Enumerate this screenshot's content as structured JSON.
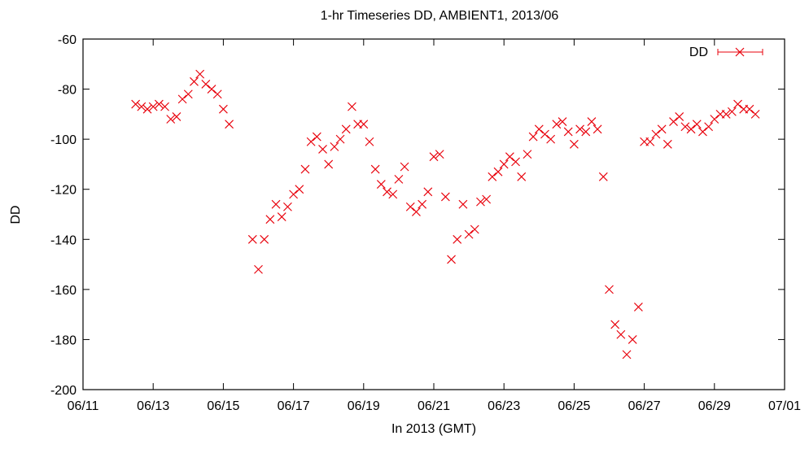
{
  "chart_data": {
    "type": "scatter",
    "title": "1-hr Timeseries DD, AMBIENT1, 2013/06",
    "xlabel": "In 2013 (GMT)",
    "ylabel": "DD",
    "xlim": [
      "2013-06-11",
      "2013-07-01"
    ],
    "ylim": [
      -200,
      -60
    ],
    "x_ticks": [
      "06/11",
      "06/13",
      "06/15",
      "06/17",
      "06/19",
      "06/21",
      "06/23",
      "06/25",
      "06/27",
      "06/29",
      "07/01"
    ],
    "y_ticks": [
      -60,
      -80,
      -100,
      -120,
      -140,
      -160,
      -180,
      -200
    ],
    "grid": false,
    "legend_position": "top-right",
    "marker": "x",
    "colors": {
      "series": "#e8000b",
      "frame": "#000000",
      "text": "#000000"
    },
    "series": [
      {
        "name": "DD",
        "x": [
          "2013-06-12 12:00",
          "2013-06-12 16:00",
          "2013-06-12 20:00",
          "2013-06-13 00:00",
          "2013-06-13 04:00",
          "2013-06-13 08:00",
          "2013-06-13 12:00",
          "2013-06-13 16:00",
          "2013-06-13 20:00",
          "2013-06-14 00:00",
          "2013-06-14 04:00",
          "2013-06-14 08:00",
          "2013-06-14 12:00",
          "2013-06-14 16:00",
          "2013-06-14 20:00",
          "2013-06-15 00:00",
          "2013-06-15 04:00",
          "2013-06-15 20:00",
          "2013-06-16 00:00",
          "2013-06-16 04:00",
          "2013-06-16 08:00",
          "2013-06-16 12:00",
          "2013-06-16 16:00",
          "2013-06-16 20:00",
          "2013-06-17 00:00",
          "2013-06-17 04:00",
          "2013-06-17 08:00",
          "2013-06-17 12:00",
          "2013-06-17 16:00",
          "2013-06-17 20:00",
          "2013-06-18 00:00",
          "2013-06-18 04:00",
          "2013-06-18 08:00",
          "2013-06-18 12:00",
          "2013-06-18 16:00",
          "2013-06-18 20:00",
          "2013-06-19 00:00",
          "2013-06-19 04:00",
          "2013-06-19 08:00",
          "2013-06-19 12:00",
          "2013-06-19 16:00",
          "2013-06-19 20:00",
          "2013-06-20 00:00",
          "2013-06-20 04:00",
          "2013-06-20 08:00",
          "2013-06-20 12:00",
          "2013-06-20 16:00",
          "2013-06-20 20:00",
          "2013-06-21 00:00",
          "2013-06-21 04:00",
          "2013-06-21 08:00",
          "2013-06-21 12:00",
          "2013-06-21 16:00",
          "2013-06-21 20:00",
          "2013-06-22 00:00",
          "2013-06-22 04:00",
          "2013-06-22 08:00",
          "2013-06-22 12:00",
          "2013-06-22 16:00",
          "2013-06-22 20:00",
          "2013-06-23 00:00",
          "2013-06-23 04:00",
          "2013-06-23 08:00",
          "2013-06-23 12:00",
          "2013-06-23 16:00",
          "2013-06-23 20:00",
          "2013-06-24 00:00",
          "2013-06-24 04:00",
          "2013-06-24 08:00",
          "2013-06-24 12:00",
          "2013-06-24 16:00",
          "2013-06-24 20:00",
          "2013-06-25 00:00",
          "2013-06-25 04:00",
          "2013-06-25 08:00",
          "2013-06-25 12:00",
          "2013-06-25 16:00",
          "2013-06-25 20:00",
          "2013-06-26 00:00",
          "2013-06-26 04:00",
          "2013-06-26 08:00",
          "2013-06-26 12:00",
          "2013-06-26 16:00",
          "2013-06-26 20:00",
          "2013-06-27 00:00",
          "2013-06-27 04:00",
          "2013-06-27 08:00",
          "2013-06-27 12:00",
          "2013-06-27 16:00",
          "2013-06-27 20:00",
          "2013-06-28 00:00",
          "2013-06-28 04:00",
          "2013-06-28 08:00",
          "2013-06-28 12:00",
          "2013-06-28 16:00",
          "2013-06-28 20:00",
          "2013-06-29 00:00",
          "2013-06-29 04:00",
          "2013-06-29 08:00",
          "2013-06-29 12:00",
          "2013-06-29 16:00",
          "2013-06-29 20:00",
          "2013-06-30 00:00",
          "2013-06-30 04:00"
        ],
        "y": [
          -86,
          -87,
          -88,
          -87,
          -86,
          -87,
          -92,
          -91,
          -84,
          -82,
          -77,
          -74,
          -78,
          -80,
          -82,
          -88,
          -94,
          -140,
          -152,
          -140,
          -132,
          -126,
          -131,
          -127,
          -122,
          -120,
          -112,
          -101,
          -99,
          -104,
          -110,
          -103,
          -100,
          -96,
          -87,
          -94,
          -94,
          -101,
          -112,
          -118,
          -121,
          -122,
          -116,
          -111,
          -127,
          -129,
          -126,
          -121,
          -107,
          -106,
          -123,
          -148,
          -140,
          -126,
          -138,
          -136,
          -125,
          -124,
          -115,
          -113,
          -110,
          -107,
          -109,
          -115,
          -106,
          -99,
          -96,
          -98,
          -100,
          -94,
          -93,
          -97,
          -102,
          -96,
          -97,
          -93,
          -96,
          -115,
          -160,
          -174,
          -178,
          -186,
          -180,
          -167,
          -101,
          -101,
          -98,
          -96,
          -102,
          -93,
          -91,
          -95,
          -96,
          -94,
          -97,
          -95,
          -92,
          -90,
          -90,
          -89,
          -86,
          -88,
          -88,
          -90
        ]
      }
    ]
  }
}
